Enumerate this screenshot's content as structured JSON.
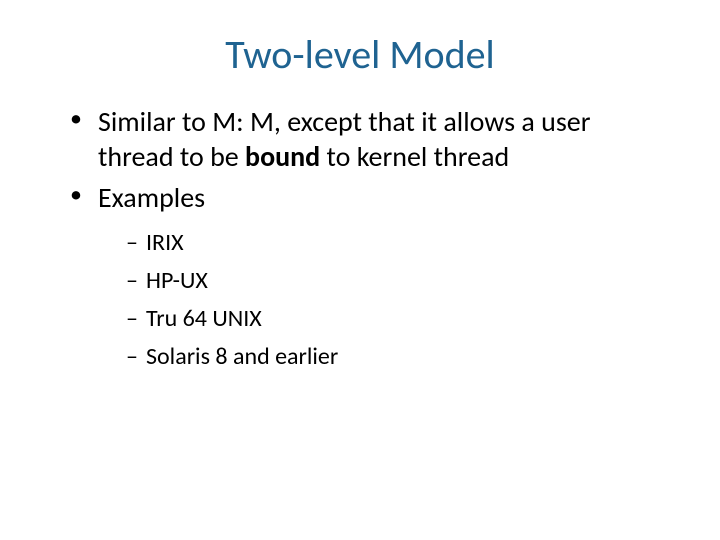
{
  "slide": {
    "title": "Two-level Model",
    "title_color": "#1f6391",
    "body_color": "#000000",
    "background_color": "#ffffff",
    "title_fontsize": 40,
    "bullet_fontsize": 28,
    "subbullet_fontsize": 24,
    "bullets": [
      {
        "pre": "Similar to M: M, except that it allows a user thread to be ",
        "bold": "bound",
        "post": " to kernel thread"
      },
      {
        "pre": "Examples",
        "bold": "",
        "post": "",
        "sub": [
          "IRIX",
          "HP-UX",
          "Tru 64 UNIX",
          "Solaris 8 and earlier"
        ]
      }
    ]
  }
}
